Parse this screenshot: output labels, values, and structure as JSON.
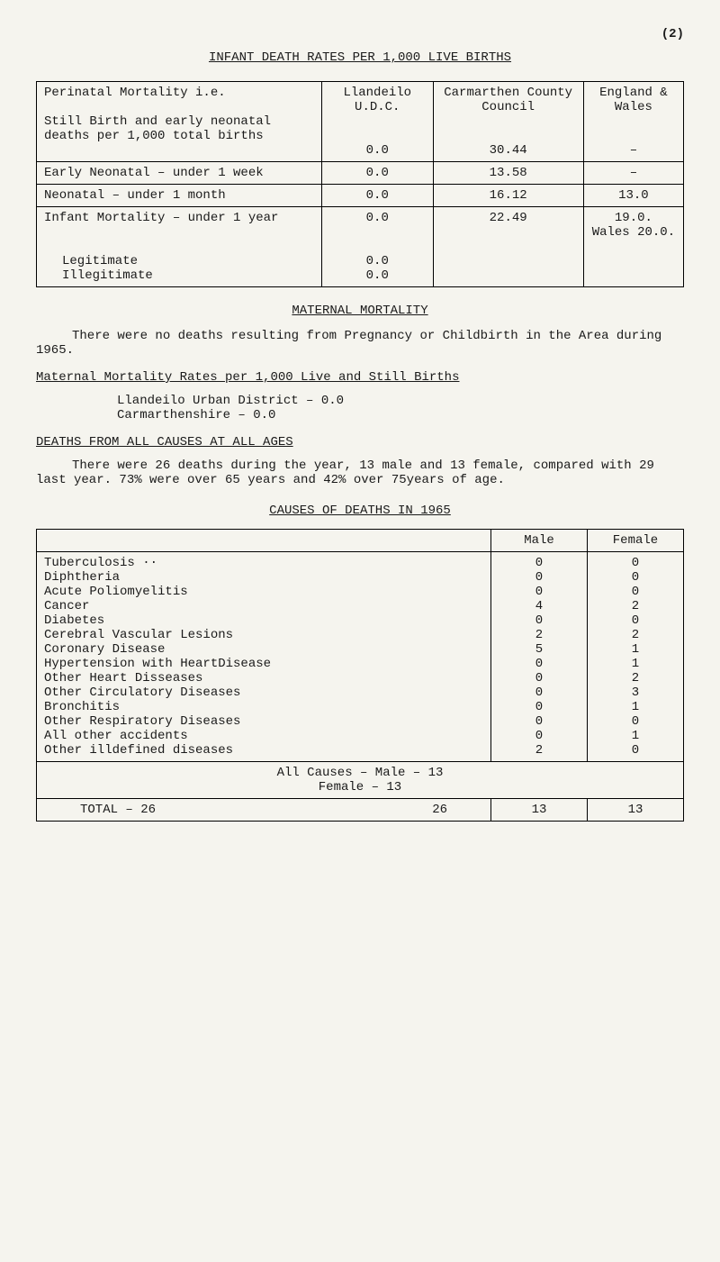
{
  "page_number_label": "(2)",
  "title_main": "INFANT DEATH RATES PER 1,000 LIVE BIRTHS",
  "table1": {
    "hdr_col1": "Perinatal Mortality i.e.",
    "hdr_col2": "Llandeilo U.D.C.",
    "hdr_col3": "Carmarthen County Council",
    "hdr_col4": "England & Wales",
    "r1_label": "Still Birth and early neonatal deaths per 1,000 total births",
    "r1_c2": "0.0",
    "r1_c3": "30.44",
    "r1_c4": "–",
    "r2_label": "Early Neonatal – under 1 week",
    "r2_c2": "0.0",
    "r2_c3": "13.58",
    "r2_c4": "–",
    "r3_label": "Neonatal – under 1 month",
    "r3_c2": "0.0",
    "r3_c3": "16.12",
    "r3_c4": "13.0",
    "r4_label": "Infant Mortality – under 1 year",
    "r4_c2": "0.0",
    "r4_c3": "22.49",
    "r4_c4": "19.0.",
    "r4_c4b": "Wales 20.0.",
    "r5_label": "Legitimate",
    "r5_c2": "0.0",
    "r6_label": "Illegitimate",
    "r6_c2": "0.0"
  },
  "section_maternal_title": "MATERNAL MORTALITY",
  "maternal_para": "There were no deaths resulting from Pregnancy or Childbirth in the Area during 1965.",
  "maternal_rates_title": "Maternal Mortality Rates per 1,000 Live and Still Births",
  "maternal_line1": "Llandeilo Urban District – 0.0",
  "maternal_line2": "Carmarthenshire           – 0.0",
  "deaths_title": "DEATHS FROM ALL CAUSES AT ALL AGES",
  "deaths_para": "There were 26 deaths during the year, 13 male and 13 female, compared with 29 last year. 73% were over 65 years and 42% over 75years of age.",
  "causes_title": "CAUSES OF DEATHS IN 1965",
  "table3": {
    "hdr_male": "Male",
    "hdr_female": "Female",
    "rows": [
      {
        "label": "Tuberculosis ··",
        "m": "0",
        "f": "0"
      },
      {
        "label": "Diphtheria",
        "m": "0",
        "f": "0"
      },
      {
        "label": "Acute Poliomyelitis",
        "m": "0",
        "f": "0"
      },
      {
        "label": "Cancer",
        "m": "4",
        "f": "2"
      },
      {
        "label": "Diabetes",
        "m": "0",
        "f": "0"
      },
      {
        "label": "Cerebral Vascular Lesions",
        "m": "2",
        "f": "2"
      },
      {
        "label": "Coronary Disease",
        "m": "5",
        "f": "1"
      },
      {
        "label": "Hypertension with HeartDisease",
        "m": "0",
        "f": "1"
      },
      {
        "label": "Other Heart Disseases",
        "m": "0",
        "f": "2"
      },
      {
        "label": "Other Circulatory Diseases",
        "m": "0",
        "f": "3"
      },
      {
        "label": "Bronchitis",
        "m": "0",
        "f": "1"
      },
      {
        "label": "Other Respiratory Diseases",
        "m": "0",
        "f": "0"
      },
      {
        "label": "All other accidents",
        "m": "0",
        "f": "1"
      },
      {
        "label": "Other illdefined diseases",
        "m": "2",
        "f": "0"
      }
    ],
    "all_causes_line1": "All Causes – Male – 13",
    "all_causes_line2": "Female – 13",
    "total_label": "TOTAL – 26",
    "total_center": "26",
    "total_m": "13",
    "total_f": "13"
  }
}
